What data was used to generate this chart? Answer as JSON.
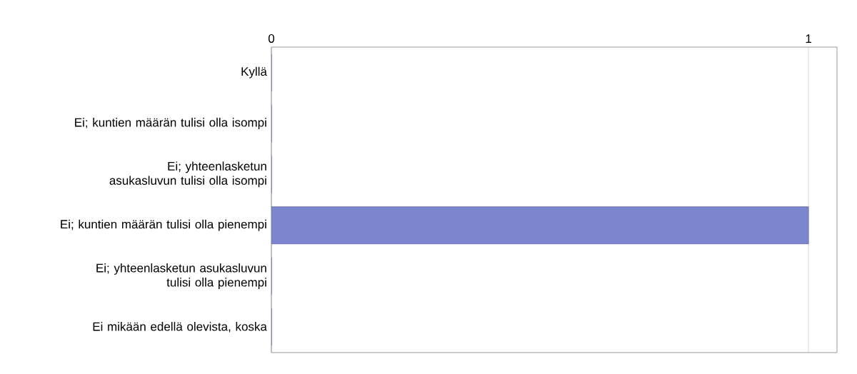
{
  "chart_data": {
    "type": "bar",
    "orientation": "horizontal",
    "categories": [
      "Kyllä",
      "Ei; kuntien määrän tulisi olla isompi",
      "Ei; yhteenlasketun asukasluvun tulisi olla isompi",
      "Ei; kuntien määrän tulisi olla pienempi",
      "Ei; yhteenlasketun asukasluvun tulisi olla pienempi",
      "Ei mikään edellä olevista, koska"
    ],
    "values": [
      0,
      0,
      0,
      1,
      0,
      0
    ],
    "color": "#7b86cf",
    "xlim": [
      0,
      1.053
    ],
    "xticks": [
      0,
      1
    ],
    "grid": "x"
  }
}
